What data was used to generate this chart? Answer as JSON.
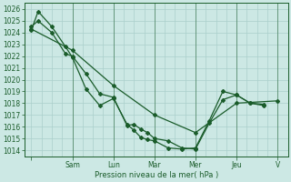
{
  "background_color": "#cce8e4",
  "grid_color": "#aacfcb",
  "line_color": "#1a5c2a",
  "marker": "D",
  "marker_size": 2,
  "linewidth": 0.9,
  "xlabel": "Pression niveau de la mer( hPa )",
  "ylim": [
    1013.5,
    1026.5
  ],
  "yticks": [
    1014,
    1015,
    1016,
    1017,
    1018,
    1019,
    1020,
    1021,
    1022,
    1023,
    1024,
    1025,
    1026
  ],
  "xtick_labels": [
    "",
    "Sam",
    "Lun",
    "Mar",
    "Mer",
    "Jeu",
    "V"
  ],
  "xtick_positions": [
    0,
    24,
    48,
    72,
    96,
    120,
    144
  ],
  "xlim": [
    -4,
    150
  ],
  "series1_x": [
    0,
    4,
    12,
    20,
    24,
    32,
    40,
    48,
    56,
    60,
    64,
    68,
    72,
    80,
    88,
    96,
    104,
    112,
    120,
    128,
    136
  ],
  "series1_y": [
    1024.5,
    1025.0,
    1024.0,
    1022.2,
    1022.0,
    1020.5,
    1018.8,
    1018.5,
    1016.1,
    1016.2,
    1015.8,
    1015.5,
    1015.0,
    1014.8,
    1014.2,
    1014.1,
    1016.3,
    1018.3,
    1018.7,
    1018.0,
    1017.9
  ],
  "series2_x": [
    0,
    4,
    12,
    20,
    24,
    32,
    40,
    48,
    56,
    60,
    64,
    68,
    72,
    80,
    88,
    96,
    104,
    112,
    120,
    128,
    136
  ],
  "series2_y": [
    1024.2,
    1025.8,
    1024.5,
    1022.8,
    1021.9,
    1019.2,
    1017.8,
    1018.4,
    1016.2,
    1015.7,
    1015.1,
    1014.9,
    1014.8,
    1014.2,
    1014.1,
    1014.2,
    1016.5,
    1019.0,
    1018.7,
    1018.0,
    1017.8
  ],
  "series3_x": [
    0,
    24,
    48,
    72,
    96,
    120,
    144
  ],
  "series3_y": [
    1024.3,
    1022.5,
    1019.5,
    1017.0,
    1015.5,
    1018.0,
    1018.2
  ]
}
